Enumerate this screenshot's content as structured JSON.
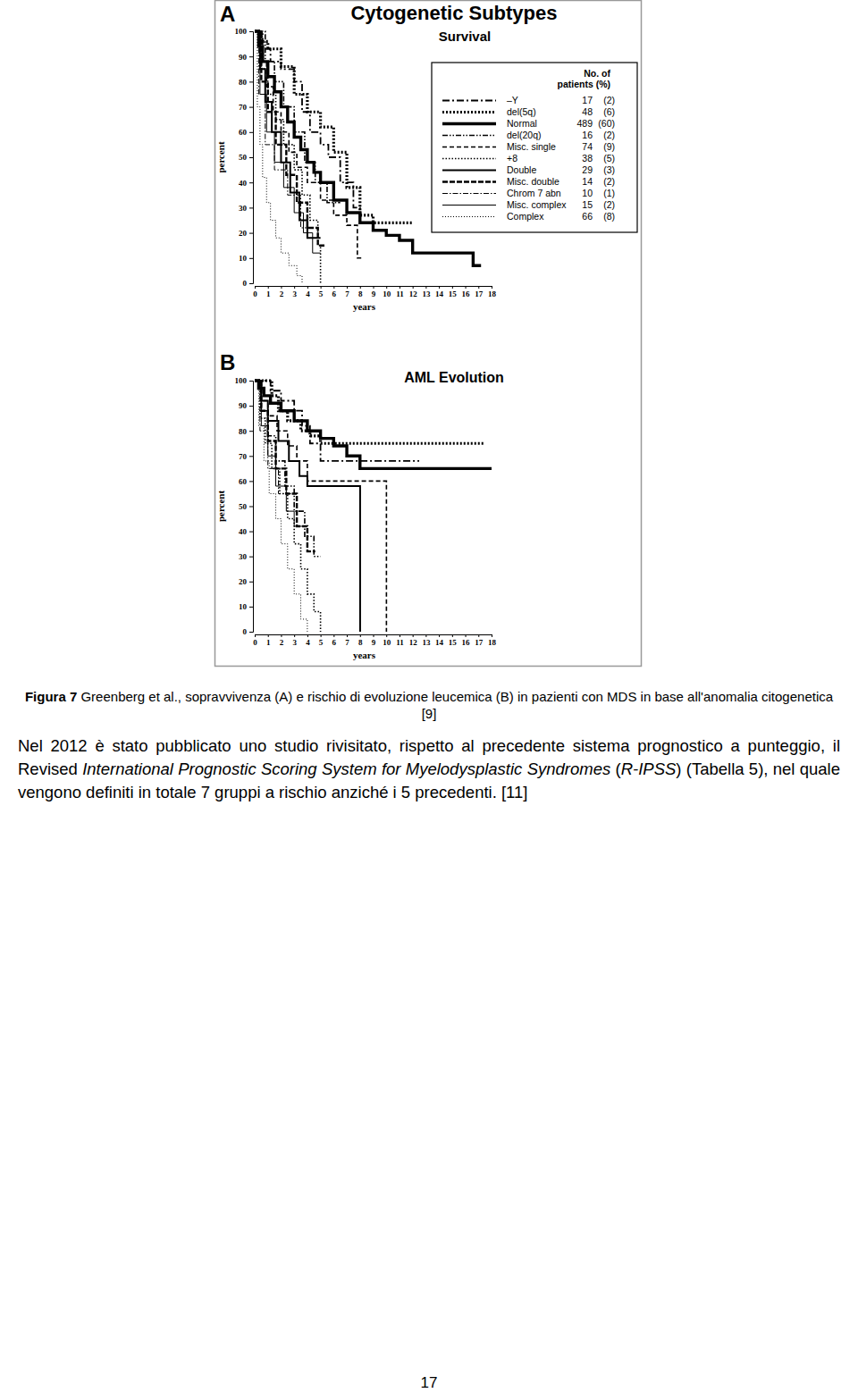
{
  "chart_data": [
    {
      "type": "line",
      "panel": "A",
      "title": "Cytogenetic Subtypes",
      "subtitle": "Survival",
      "x_label": "years",
      "y_label": "percent",
      "xlim": [
        0,
        18
      ],
      "xticks": [
        0,
        1,
        2,
        3,
        4,
        5,
        6,
        7,
        8,
        9,
        10,
        11,
        12,
        13,
        14,
        15,
        16,
        17,
        18
      ],
      "ylim": [
        0,
        100
      ],
      "yticks": [
        0,
        10,
        20,
        30,
        40,
        50,
        60,
        70,
        80,
        90,
        100
      ],
      "legend_header": [
        "No. of",
        "patients (%)"
      ],
      "series": [
        {
          "name": "–Y",
          "line_style": "dashdot",
          "color": "#000000",
          "patients": 17,
          "percent": "(2)",
          "x": [
            0,
            0.6,
            1.2,
            2,
            3,
            3.6,
            4.2,
            5,
            5.6,
            6.5,
            7.5,
            8
          ],
          "values": [
            100,
            93,
            88,
            85,
            80,
            68,
            60,
            55,
            50,
            40,
            30,
            27
          ]
        },
        {
          "name": "del(5q)",
          "line_style": "dotted-bold",
          "color": "#000000",
          "patients": 48,
          "percent": "(6)",
          "x": [
            0,
            0.5,
            1,
            2,
            3,
            4,
            5,
            6,
            7,
            8,
            9,
            12
          ],
          "values": [
            100,
            96,
            93,
            86,
            75,
            68,
            62,
            52,
            38,
            27,
            24,
            24
          ]
        },
        {
          "name": "Normal",
          "line_style": "solid-bold",
          "color": "#000000",
          "patients": 489,
          "percent": "(60)",
          "x": [
            0,
            0.3,
            0.6,
            1,
            1.5,
            2,
            2.5,
            3,
            3.5,
            4,
            4.5,
            5,
            6,
            7,
            8,
            9,
            10,
            11,
            12,
            16,
            16.6,
            17.2
          ],
          "values": [
            100,
            94,
            88,
            82,
            76,
            70,
            64,
            58,
            53,
            48,
            44,
            40,
            33,
            28,
            24,
            21,
            19,
            17,
            12,
            12,
            7,
            7
          ]
        },
        {
          "name": "del(20q)",
          "line_style": "dashdotdot",
          "color": "#000000",
          "patients": 16,
          "percent": "(2)",
          "x": [
            0,
            0.8,
            1.5,
            2.2,
            3,
            3.8,
            4.6,
            5.5,
            6.5
          ],
          "values": [
            100,
            88,
            80,
            70,
            60,
            48,
            40,
            32,
            32
          ]
        },
        {
          "name": "Misc. single",
          "line_style": "dashed",
          "color": "#000000",
          "patients": 74,
          "percent": "(9)",
          "x": [
            0,
            0.4,
            0.9,
            1.4,
            2,
            2.6,
            3.2,
            4,
            5,
            6,
            7,
            7.8,
            8.2
          ],
          "values": [
            100,
            88,
            78,
            68,
            60,
            52,
            46,
            40,
            33,
            27,
            23,
            10,
            10
          ]
        },
        {
          "name": "+8",
          "line_style": "dotted",
          "color": "#000000",
          "patients": 38,
          "percent": "(5)",
          "x": [
            0,
            0.5,
            1,
            1.6,
            2.2,
            3,
            3.6,
            4.2,
            4.8,
            5
          ],
          "values": [
            100,
            85,
            75,
            65,
            55,
            45,
            35,
            25,
            15,
            0
          ]
        },
        {
          "name": "Double",
          "line_style": "solid",
          "color": "#000000",
          "patients": 29,
          "percent": "(3)",
          "x": [
            0,
            0.4,
            0.8,
            1.3,
            2,
            2.7,
            3.4,
            4,
            5
          ],
          "values": [
            100,
            85,
            72,
            60,
            48,
            36,
            25,
            18,
            18
          ]
        },
        {
          "name": "Misc. double",
          "line_style": "dashed-bold",
          "color": "#000000",
          "patients": 14,
          "percent": "(2)",
          "x": [
            0,
            0.5,
            1,
            1.6,
            2.4,
            3.2,
            4,
            4.8,
            5.3
          ],
          "values": [
            100,
            80,
            68,
            55,
            43,
            32,
            22,
            15,
            15
          ]
        },
        {
          "name": "Chrom 7 abn",
          "line_style": "dashdot-thin",
          "color": "#000000",
          "patients": 10,
          "percent": "(1)",
          "x": [
            0,
            0.3,
            0.8,
            1.5,
            2.5,
            3.5,
            4.5
          ],
          "values": [
            100,
            75,
            55,
            45,
            35,
            22,
            22
          ]
        },
        {
          "name": "Misc. complex",
          "line_style": "solid-thin",
          "color": "#000000",
          "patients": 15,
          "percent": "(2)",
          "x": [
            0,
            0.4,
            0.9,
            1.5,
            2.2,
            3,
            3.7,
            4.4,
            5
          ],
          "values": [
            100,
            75,
            60,
            48,
            38,
            28,
            20,
            12,
            12
          ]
        },
        {
          "name": "Complex",
          "line_style": "dotted-thin",
          "color": "#000000",
          "patients": 66,
          "percent": "(8)",
          "x": [
            0,
            0.2,
            0.4,
            0.6,
            0.9,
            1.2,
            1.6,
            2,
            2.6,
            3.2,
            3.6
          ],
          "values": [
            100,
            70,
            55,
            42,
            32,
            25,
            18,
            12,
            7,
            3,
            0
          ]
        }
      ]
    },
    {
      "type": "line",
      "panel": "B",
      "title": "AML Evolution",
      "x_label": "years",
      "y_label": "percent",
      "xlim": [
        0,
        18
      ],
      "xticks": [
        0,
        1,
        2,
        3,
        4,
        5,
        6,
        7,
        8,
        9,
        10,
        11,
        12,
        13,
        14,
        15,
        16,
        17,
        18
      ],
      "ylim": [
        0,
        100
      ],
      "yticks": [
        0,
        10,
        20,
        30,
        40,
        50,
        60,
        70,
        80,
        90,
        100
      ],
      "series": [
        {
          "line_style": "dashdot",
          "color": "#000000",
          "x": [
            0,
            1.2,
            2,
            3,
            3.6,
            4.2,
            5,
            12.5
          ],
          "values": [
            100,
            96,
            92,
            88,
            82,
            75,
            68,
            68
          ]
        },
        {
          "line_style": "dotted-bold",
          "color": "#000000",
          "x": [
            0,
            1.3,
            1.8,
            2.5,
            3.5,
            4.2,
            5,
            17.5
          ],
          "values": [
            100,
            94,
            88,
            84,
            80,
            78,
            75,
            75
          ]
        },
        {
          "line_style": "solid-bold",
          "color": "#000000",
          "x": [
            0,
            0.3,
            0.7,
            1.2,
            2,
            3,
            4,
            5,
            6,
            7,
            8,
            18
          ],
          "values": [
            100,
            97,
            94,
            91,
            88,
            84,
            80,
            77,
            74,
            70,
            65,
            65
          ]
        },
        {
          "line_style": "dashdotdot",
          "color": "#000000",
          "x": [
            0,
            0.5,
            1,
            1.6,
            2.3,
            3,
            3.8,
            4.5,
            5
          ],
          "values": [
            100,
            88,
            78,
            68,
            58,
            48,
            38,
            30,
            30
          ]
        },
        {
          "line_style": "dashed",
          "color": "#000000",
          "x": [
            0,
            0.5,
            1,
            1.7,
            2.5,
            3.2,
            4,
            10,
            10.01
          ],
          "values": [
            100,
            92,
            86,
            80,
            74,
            68,
            60,
            60,
            0
          ]
        },
        {
          "line_style": "dotted",
          "color": "#000000",
          "x": [
            0,
            0.4,
            0.8,
            1.3,
            1.9,
            2.5,
            3,
            3.5,
            4,
            4.5,
            5
          ],
          "values": [
            100,
            85,
            75,
            65,
            55,
            45,
            35,
            25,
            15,
            8,
            0
          ]
        },
        {
          "line_style": "solid",
          "color": "#000000",
          "x": [
            0,
            0.5,
            1,
            1.8,
            2.6,
            3.4,
            4,
            8,
            8.01
          ],
          "values": [
            100,
            92,
            84,
            76,
            68,
            62,
            58,
            58,
            0
          ]
        },
        {
          "line_style": "dashed-bold",
          "color": "#000000",
          "x": [
            0,
            0.5,
            1,
            1.6,
            2.4,
            3.2,
            4,
            4.6
          ],
          "values": [
            100,
            88,
            76,
            65,
            55,
            42,
            32,
            32
          ]
        },
        {
          "line_style": "dashdot-thin",
          "color": "#000000",
          "x": [
            0,
            0.4,
            1,
            1.8,
            3
          ],
          "values": [
            100,
            80,
            65,
            55,
            55
          ]
        },
        {
          "line_style": "solid-thin",
          "color": "#000000",
          "x": [
            0,
            0.5,
            1,
            1.6,
            2.4,
            3,
            4
          ],
          "values": [
            100,
            82,
            70,
            58,
            48,
            42,
            42
          ]
        },
        {
          "line_style": "dotted-thin",
          "color": "#000000",
          "x": [
            0,
            0.3,
            0.7,
            1.1,
            1.6,
            2,
            2.5,
            3,
            3.5,
            4
          ],
          "values": [
            100,
            82,
            68,
            55,
            45,
            35,
            25,
            15,
            5,
            0
          ]
        }
      ]
    }
  ],
  "document": {
    "caption": {
      "label": "Figura 7",
      "text": "Greenberg et al., sopravvivenza (A) e rischio di evoluzione leucemica (B) in pazienti con MDS in base all'anomalia citogenetica [9]"
    },
    "paragraph": {
      "runs": [
        {
          "text": "Nel 2012 è stato pubblicato uno studio rivisitato, rispetto al precedente sistema prognostico a punteggio, il Revised ",
          "italic": false
        },
        {
          "text": "International Prognostic Scoring System for Myelodysplastic Syndromes",
          "italic": true
        },
        {
          "text": " (",
          "italic": false
        },
        {
          "text": "R-IPSS",
          "italic": true
        },
        {
          "text": ") (Tabella 5), nel quale vengono definiti in totale 7 gruppi a rischio anziché i 5 precedenti. [11]",
          "italic": false
        }
      ]
    },
    "page_number": "17"
  }
}
